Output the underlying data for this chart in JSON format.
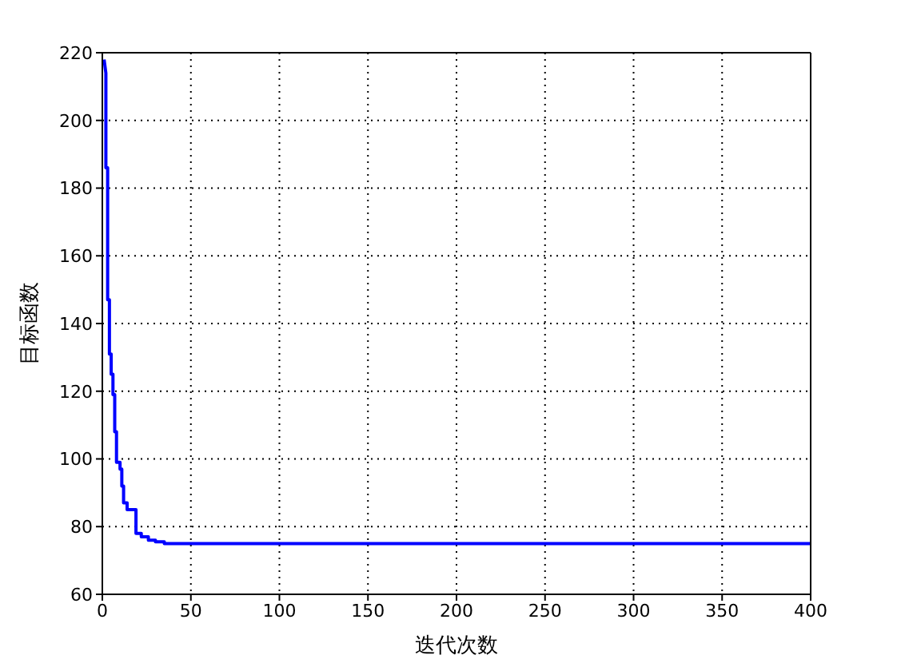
{
  "chart_data": {
    "type": "line",
    "xlabel": "迭代次数",
    "ylabel": "目标函数",
    "x": [
      1,
      2,
      2,
      3,
      3,
      4,
      4,
      5,
      5,
      6,
      6,
      7,
      7,
      8,
      8,
      10,
      10,
      11,
      11,
      12,
      12,
      14,
      14,
      19,
      19,
      22,
      22,
      26,
      26,
      30,
      30,
      35,
      35,
      400
    ],
    "series": [
      {
        "color": "#0000ff",
        "values": [
          218,
          214,
          186,
          186,
          147,
          147,
          131,
          131,
          125,
          125,
          119,
          119,
          108,
          108,
          99,
          99,
          97,
          97,
          92,
          92,
          87,
          87,
          85,
          85,
          78,
          78,
          77,
          77,
          76,
          76,
          75.5,
          75.5,
          75,
          75
        ]
      }
    ],
    "xlim": [
      0,
      400
    ],
    "xticks": [
      0,
      50,
      100,
      150,
      200,
      250,
      300,
      350,
      400
    ],
    "ylim": [
      60,
      220
    ],
    "yticks": [
      60,
      80,
      100,
      120,
      140,
      160,
      180,
      200,
      220
    ],
    "grid": true
  }
}
